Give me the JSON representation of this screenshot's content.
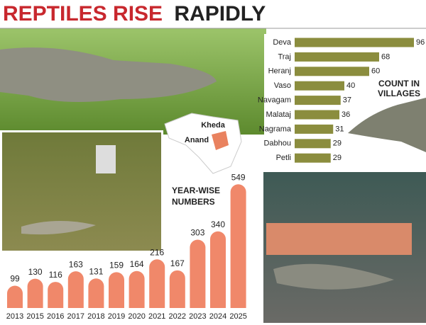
{
  "title_lead": "REPTILES RISE",
  "title_tail": "RAPIDLY",
  "map_labels": [
    "Kheda",
    "Anand"
  ],
  "chart_data": [
    {
      "type": "hbar",
      "title": "COUNT IN VILLAGES",
      "categories": [
        "Deva",
        "Traj",
        "Heranj",
        "Vaso",
        "Navagam",
        "Malataj",
        "Nagrama",
        "Dabhou",
        "Petli"
      ],
      "values": [
        96,
        68,
        60,
        40,
        37,
        36,
        31,
        29,
        29
      ],
      "color": "#8b8d3e",
      "xlim": [
        0,
        100
      ]
    },
    {
      "type": "bar",
      "title": "YEAR-WISE NUMBERS",
      "categories": [
        "2013",
        "2015",
        "2016",
        "2017",
        "2018",
        "2019",
        "2020",
        "2021",
        "2022",
        "2023",
        "2024",
        "2025"
      ],
      "values": [
        99,
        130,
        116,
        163,
        131,
        159,
        164,
        216,
        167,
        303,
        340,
        549
      ],
      "color": "#f0886a",
      "ylim": [
        0,
        600
      ]
    }
  ]
}
